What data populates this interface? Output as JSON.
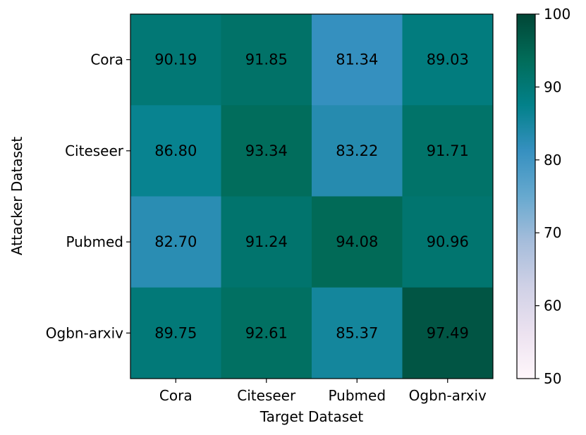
{
  "chart_data": {
    "type": "heatmap",
    "xlabel": "Target Dataset",
    "ylabel": "Attacker Dataset",
    "x_categories": [
      "Cora",
      "Citeseer",
      "Pubmed",
      "Ogbn-arxiv"
    ],
    "y_categories": [
      "Cora",
      "Citeseer",
      "Pubmed",
      "Ogbn-arxiv"
    ],
    "values": [
      [
        90.19,
        91.85,
        81.34,
        89.03
      ],
      [
        86.8,
        93.34,
        83.22,
        91.71
      ],
      [
        82.7,
        91.24,
        94.08,
        90.96
      ],
      [
        89.75,
        92.61,
        85.37,
        97.49
      ]
    ],
    "value_labels": [
      [
        "90.19",
        "91.85",
        "81.34",
        "89.03"
      ],
      [
        "86.80",
        "93.34",
        "83.22",
        "91.71"
      ],
      [
        "82.70",
        "91.24",
        "94.08",
        "90.96"
      ],
      [
        "89.75",
        "92.61",
        "85.37",
        "97.49"
      ]
    ],
    "colormap": "PuBuGn",
    "colorbar": {
      "range": [
        50,
        100
      ],
      "ticks": [
        50,
        60,
        70,
        80,
        90,
        100
      ],
      "tick_labels": [
        "50",
        "60",
        "70",
        "80",
        "90",
        "100"
      ]
    }
  }
}
